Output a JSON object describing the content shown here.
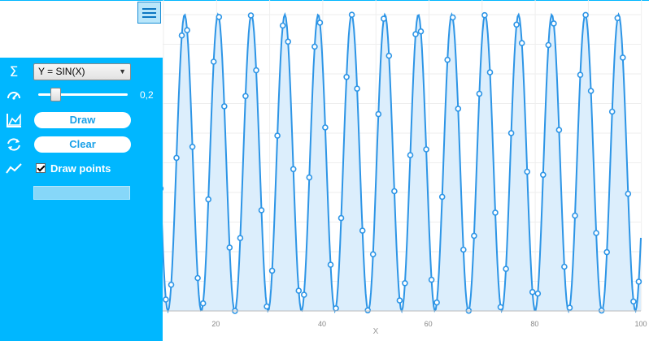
{
  "menu": {
    "icon": "hamburger-menu-icon"
  },
  "sidebar": {
    "function_select": {
      "icon": "sigma-icon",
      "value": "Y = SIN(X)"
    },
    "step": {
      "icon": "speedometer-icon",
      "value": "0,2",
      "level": 0.2
    },
    "draw": {
      "icon": "area-chart-icon",
      "label": "Draw"
    },
    "clear": {
      "icon": "refresh-icon",
      "label": "Clear"
    },
    "points": {
      "icon": "line-chart-icon",
      "label": "Draw points",
      "checked": true
    },
    "input": {
      "value": ""
    }
  },
  "colors": {
    "sidebar": "#00b7ff",
    "series": "#2d95e6",
    "fill": "#dceefc",
    "grid": "#eeeeee"
  },
  "chart_data": {
    "type": "area",
    "function": "sin",
    "x_range": [
      0.2,
      100
    ],
    "step": 0.2,
    "y_range": [
      -1,
      1
    ],
    "xlabel": "X",
    "ylabel": "",
    "x_ticks": [
      "20",
      "40",
      "60",
      "80",
      "100"
    ],
    "grid": true,
    "markers": true
  }
}
